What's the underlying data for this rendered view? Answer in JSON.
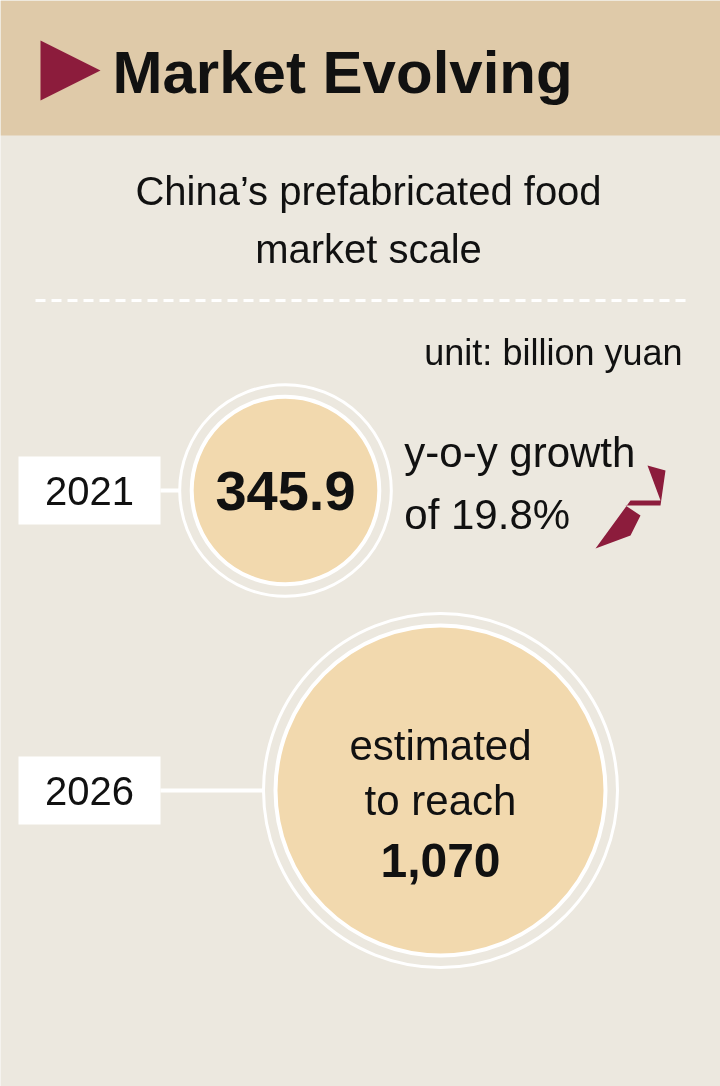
{
  "chart_data": {
    "type": "other",
    "title": "Market Evolving",
    "subtitle": "China’s prefabricated food market scale",
    "categories": [
      "2021",
      "2026"
    ],
    "values": [
      345.9,
      1070
    ],
    "value_labels": [
      "345.9",
      "1,070"
    ],
    "annotations": [
      "unit: billion yuan",
      "y-o-y growth of 19.8%",
      "estimated to reach"
    ]
  }
}
